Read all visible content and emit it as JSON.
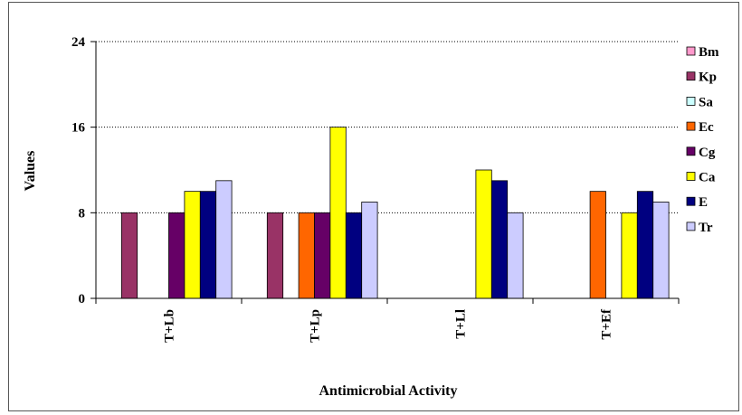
{
  "chart_data": {
    "type": "bar",
    "title": "",
    "xlabel": "Antimicrobial Activity",
    "ylabel": "Values",
    "ylim": [
      0,
      24
    ],
    "yticks": [
      0,
      8,
      16,
      24
    ],
    "grid": "horizontal dotted at 8 and 16",
    "legend_position": "right",
    "categories": [
      "T+Lb",
      "T+Lp",
      "T+Ll",
      "T+Ef"
    ],
    "series": [
      {
        "name": "Bm",
        "color": "#ff99cc",
        "values": [
          0,
          0,
          0,
          0
        ]
      },
      {
        "name": "Kp",
        "color": "#993366",
        "values": [
          8,
          8,
          0,
          0
        ]
      },
      {
        "name": "Sa",
        "color": "#ccffff",
        "values": [
          0,
          0,
          0,
          0
        ]
      },
      {
        "name": "Ec",
        "color": "#ff6600",
        "values": [
          0,
          8,
          0,
          10
        ]
      },
      {
        "name": "Cg",
        "color": "#660066",
        "values": [
          8,
          8,
          0,
          0
        ]
      },
      {
        "name": "Ca",
        "color": "#ffff00",
        "values": [
          10,
          16,
          12,
          8
        ]
      },
      {
        "name": "E",
        "color": "#000080",
        "values": [
          10,
          8,
          11,
          10
        ]
      },
      {
        "name": "Tr",
        "color": "#ccccff",
        "values": [
          11,
          9,
          8,
          9
        ]
      }
    ]
  }
}
